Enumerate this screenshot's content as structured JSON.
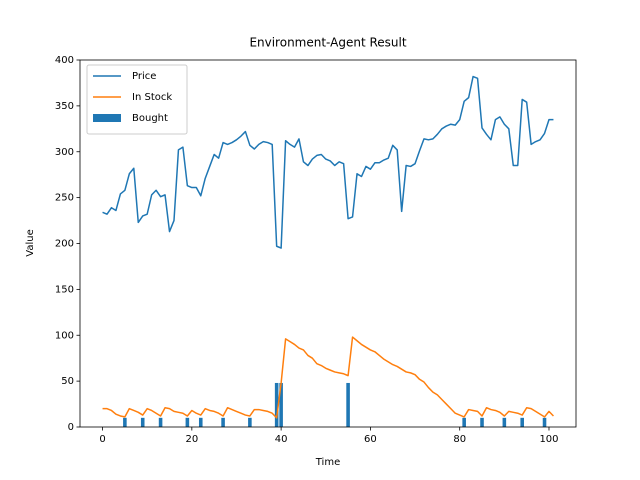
{
  "chart_data": {
    "type": "line",
    "title": "Environment-Agent Result",
    "x_label": "Time",
    "y_label": "Value",
    "x": [
      0,
      1,
      2,
      3,
      4,
      5,
      6,
      7,
      8,
      9,
      10,
      11,
      12,
      13,
      14,
      15,
      16,
      17,
      18,
      19,
      20,
      21,
      22,
      23,
      24,
      25,
      26,
      27,
      28,
      29,
      30,
      31,
      32,
      33,
      34,
      35,
      36,
      37,
      38,
      39,
      40,
      41,
      42,
      43,
      44,
      45,
      46,
      47,
      48,
      49,
      50,
      51,
      52,
      53,
      54,
      55,
      56,
      57,
      58,
      59,
      60,
      61,
      62,
      63,
      64,
      65,
      66,
      67,
      68,
      69,
      70,
      71,
      72,
      73,
      74,
      75,
      76,
      77,
      78,
      79,
      80,
      81,
      82,
      83,
      84,
      85,
      86,
      87,
      88,
      89,
      90,
      91,
      92,
      93,
      94,
      95,
      96,
      97,
      98,
      99,
      100,
      101
    ],
    "series": [
      {
        "name": "Price",
        "type": "line",
        "color": "#1f77b4",
        "values": [
          234,
          232,
          239,
          236,
          254,
          258,
          276,
          282,
          223,
          230,
          232,
          253,
          258,
          251,
          253,
          213,
          225,
          302,
          305,
          263,
          261,
          261,
          252,
          271,
          284,
          297,
          293,
          310,
          308,
          310,
          313,
          317,
          322,
          307,
          303,
          308,
          311,
          310,
          308,
          197,
          195,
          312,
          308,
          305,
          314,
          289,
          285,
          292,
          296,
          297,
          292,
          290,
          285,
          289,
          287,
          227,
          229,
          276,
          273,
          284,
          281,
          288,
          288,
          291,
          293,
          307,
          302,
          235,
          285,
          284,
          287,
          301,
          314,
          313,
          314,
          319,
          325,
          328,
          330,
          329,
          335,
          355,
          359,
          382,
          380,
          326,
          319,
          313,
          335,
          338,
          330,
          325,
          285,
          285,
          357,
          354,
          308,
          311,
          313,
          320,
          335,
          335
        ]
      },
      {
        "name": "In Stock",
        "type": "line",
        "color": "#ff7f0e",
        "values": [
          20,
          20,
          18,
          14,
          12,
          11,
          20,
          18,
          16,
          13,
          20,
          18,
          15,
          12,
          21,
          20,
          17,
          16,
          15,
          12,
          18,
          15,
          13,
          20,
          18,
          17,
          15,
          12,
          21,
          19,
          17,
          15,
          13,
          12,
          19,
          19,
          18,
          17,
          15,
          10,
          48,
          96,
          93,
          90,
          86,
          84,
          78,
          75,
          69,
          67,
          64,
          62,
          60,
          59,
          58,
          56,
          98,
          94,
          90,
          87,
          84,
          82,
          78,
          74,
          71,
          68,
          66,
          63,
          60,
          59,
          57,
          52,
          49,
          43,
          38,
          35,
          30,
          25,
          20,
          15,
          13,
          11,
          19,
          18,
          17,
          12,
          21,
          19,
          18,
          16,
          12,
          17,
          16,
          15,
          13,
          21,
          20,
          17,
          14,
          11,
          17,
          12
        ]
      },
      {
        "name": "Bought",
        "type": "bar",
        "color": "#1f77b4",
        "x": [
          5,
          9,
          13,
          19,
          22,
          27,
          33,
          39,
          40,
          55,
          81,
          85,
          90,
          94,
          99
        ],
        "values": [
          10,
          10,
          10,
          10,
          10,
          10,
          10,
          48,
          48,
          48,
          10,
          10,
          10,
          10,
          10
        ]
      }
    ],
    "xlim": [
      -5.05,
      106.05
    ],
    "ylim": [
      0,
      400
    ],
    "xticks": [
      0,
      20,
      40,
      60,
      80,
      100
    ],
    "yticks": [
      0,
      50,
      100,
      150,
      200,
      250,
      300,
      350,
      400
    ],
    "legend": "upper left",
    "grid": false
  }
}
